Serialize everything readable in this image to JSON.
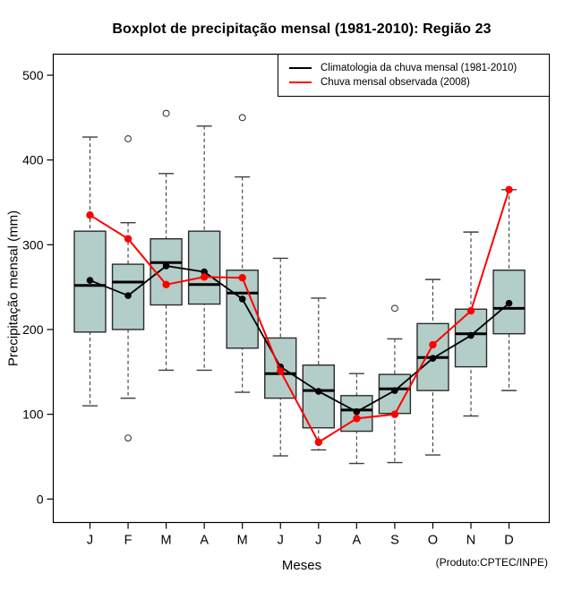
{
  "page": {
    "title": "Boxplot de precipitação mensal (1981-2010): Região 23",
    "footer_note": "(Produto:CPTEC/INPE)"
  },
  "chart_data": {
    "type": "boxplot",
    "title": "Boxplot de precipitação mensal (1981-2010): Região 23",
    "xlabel": "Meses",
    "ylabel": "Precipitação mensal (mm)",
    "footer_note": "(Produto:CPTEC/INPE)",
    "categories": [
      "J",
      "F",
      "M",
      "A",
      "M",
      "J",
      "J",
      "A",
      "S",
      "O",
      "N",
      "D"
    ],
    "yticks": [
      0,
      100,
      200,
      300,
      400,
      500
    ],
    "ylim": [
      0,
      500
    ],
    "grid": false,
    "legend_position": "top-right inset",
    "box_stats": [
      {
        "month": "J",
        "whisker_low": 110,
        "q1": 197,
        "median": 252,
        "q3": 316,
        "whisker_high": 427,
        "outliers": []
      },
      {
        "month": "F",
        "whisker_low": 119,
        "q1": 200,
        "median": 256,
        "q3": 277,
        "whisker_high": 326,
        "outliers": [
          425,
          72
        ]
      },
      {
        "month": "M",
        "whisker_low": 152,
        "q1": 229,
        "median": 279,
        "q3": 307,
        "whisker_high": 384,
        "outliers": [
          455
        ]
      },
      {
        "month": "A",
        "whisker_low": 152,
        "q1": 230,
        "median": 253,
        "q3": 316,
        "whisker_high": 440,
        "outliers": []
      },
      {
        "month": "M",
        "whisker_low": 126,
        "q1": 178,
        "median": 243,
        "q3": 270,
        "whisker_high": 380,
        "outliers": [
          450
        ]
      },
      {
        "month": "J",
        "whisker_low": 51,
        "q1": 119,
        "median": 148,
        "q3": 190,
        "whisker_high": 284,
        "outliers": []
      },
      {
        "month": "J",
        "whisker_low": 58,
        "q1": 84,
        "median": 128,
        "q3": 158,
        "whisker_high": 237,
        "outliers": []
      },
      {
        "month": "A",
        "whisker_low": 42,
        "q1": 80,
        "median": 105,
        "q3": 122,
        "whisker_high": 148,
        "outliers": []
      },
      {
        "month": "S",
        "whisker_low": 43,
        "q1": 101,
        "median": 130,
        "q3": 147,
        "whisker_high": 189,
        "outliers": [
          225
        ]
      },
      {
        "month": "O",
        "whisker_low": 52,
        "q1": 128,
        "median": 167,
        "q3": 207,
        "whisker_high": 259,
        "outliers": []
      },
      {
        "month": "N",
        "whisker_low": 98,
        "q1": 156,
        "median": 195,
        "q3": 224,
        "whisker_high": 315,
        "outliers": []
      },
      {
        "month": "D",
        "whisker_low": 128,
        "q1": 195,
        "median": 225,
        "q3": 270,
        "whisker_high": 365,
        "outliers": []
      }
    ],
    "series": [
      {
        "name": "Climatologia da chuva mensal (1981-2010)",
        "color": "#000000",
        "marker": "filled-circle",
        "values": [
          258,
          240,
          275,
          268,
          236,
          156,
          127,
          103,
          128,
          166,
          193,
          231
        ]
      },
      {
        "name": "Chuva mensal observada (2008)",
        "color": "#ff0000",
        "marker": "filled-circle",
        "values": [
          335,
          307,
          253,
          262,
          261,
          151,
          67,
          95,
          100,
          182,
          222,
          365
        ]
      }
    ],
    "colors": {
      "box_fill": "#b3cdc8",
      "box_border": "#2b2b2b",
      "whisker": "#3d3d3d",
      "median": "#000000",
      "frame": "#000000"
    }
  }
}
